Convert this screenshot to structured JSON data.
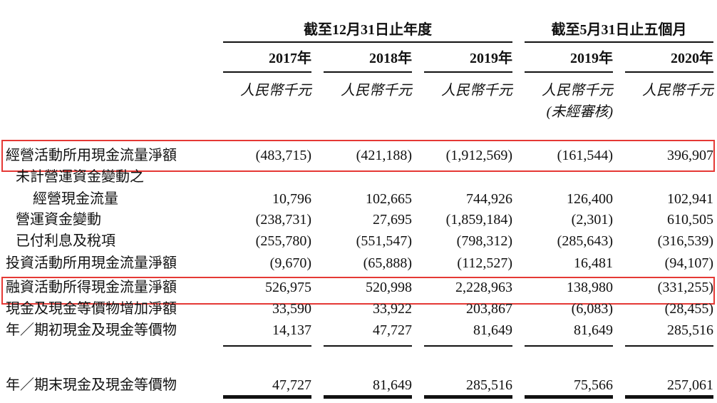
{
  "header": {
    "period_groups": [
      "截至12月31日止年度",
      "截至5月31日止五個月"
    ],
    "columns": [
      {
        "year": "2017年",
        "unit": "人民幣千元"
      },
      {
        "year": "2018年",
        "unit": "人民幣千元"
      },
      {
        "year": "2019年",
        "unit": "人民幣千元"
      },
      {
        "year": "2019年",
        "unit": "人民幣千元",
        "note": "(未經審核)"
      },
      {
        "year": "2020年",
        "unit": "人民幣千元"
      }
    ]
  },
  "table": {
    "rows": [
      {
        "label": "經營活動所用現金流量淨額",
        "values": [
          "(483,715)",
          "(421,188)",
          "(1,912,569)",
          "(161,544)",
          "396,907"
        ]
      },
      {
        "label": "未計營運資金變動之",
        "label_2": "經營現金流量",
        "values": [
          "10,796",
          "102,665",
          "744,926",
          "126,400",
          "102,941"
        ]
      },
      {
        "label": "營運資金變動",
        "values": [
          "(238,731)",
          "27,695",
          "(1,859,184)",
          "(2,301)",
          "610,505"
        ]
      },
      {
        "label": "已付利息及稅項",
        "values": [
          "(255,780)",
          "(551,547)",
          "(798,312)",
          "(285,643)",
          "(316,539)"
        ]
      },
      {
        "label": "投資活動所用現金流量淨額",
        "values": [
          "(9,670)",
          "(65,888)",
          "(112,527)",
          "16,481",
          "(94,107)"
        ]
      },
      {
        "label": "融資活動所得現金流量淨額",
        "values": [
          "526,975",
          "520,998",
          "2,228,963",
          "138,980",
          "(331,255)"
        ]
      },
      {
        "label": "現金及現金等價物增加淨額",
        "values": [
          "33,590",
          "33,922",
          "203,867",
          "(6,083)",
          "(28,455)"
        ]
      },
      {
        "label": "年／期初現金及現金等價物",
        "values": [
          "14,137",
          "47,727",
          "81,649",
          "81,649",
          "285,516"
        ]
      }
    ],
    "total": {
      "label": "年／期末現金及現金等價物",
      "values": [
        "47,727",
        "81,649",
        "285,516",
        "75,566",
        "257,061"
      ]
    }
  }
}
